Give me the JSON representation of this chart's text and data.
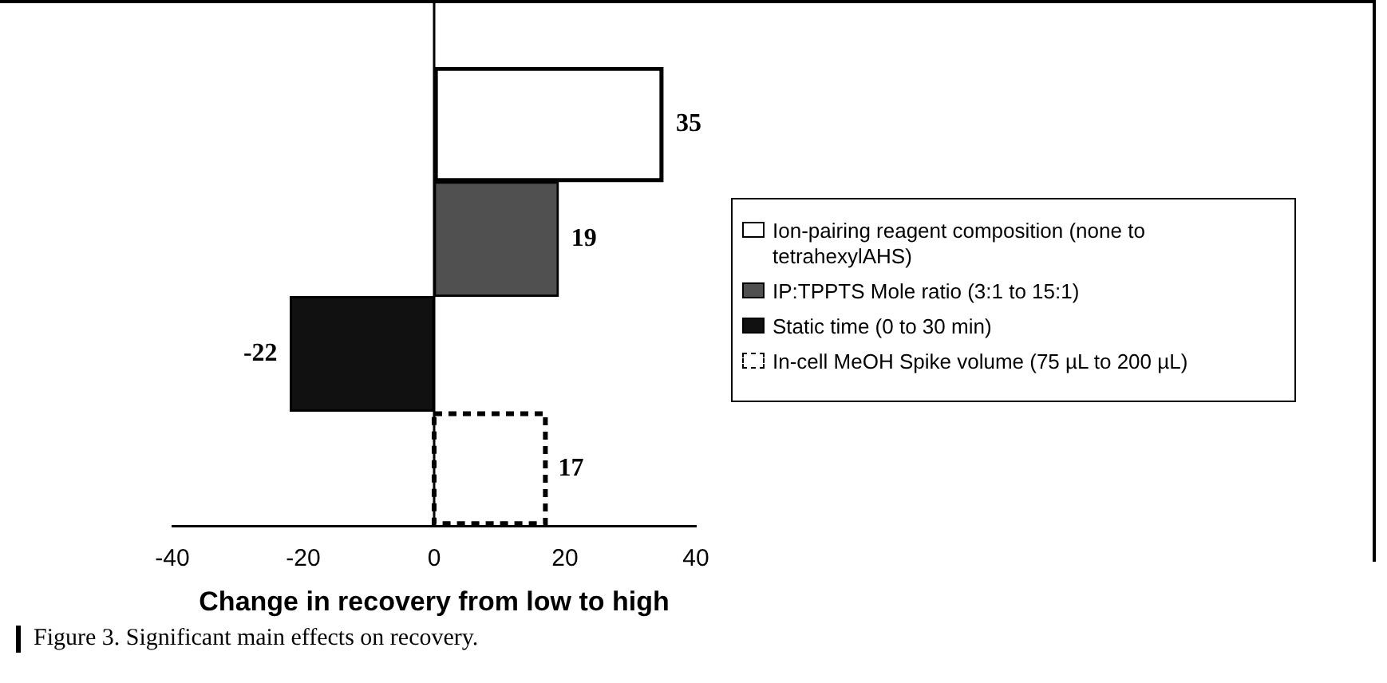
{
  "chart_data": {
    "type": "bar",
    "orientation": "horizontal",
    "xlabel": "Change in recovery from low to high",
    "categories": [
      null,
      null,
      null,
      null
    ],
    "series": [
      {
        "name": "Ion-pairing reagent composition (none to tetrahexylAHS)",
        "color": "#000000",
        "line_style": "solid",
        "values": [
          35,
          null,
          null,
          null
        ]
      },
      {
        "name": "IP:TPPTS Mole ratio (3:1 to 15:1)",
        "color": "#505050",
        "values": [
          null,
          19,
          null,
          null
        ]
      },
      {
        "name": "Static time (0 to 30 min)",
        "color": "#111111",
        "values": [
          null,
          null,
          -22,
          null
        ]
      },
      {
        "name": "In-cell MeOH Spike volume (75 µL to 200 µL)",
        "color": "#000000",
        "line_style": "dashed",
        "values": [
          null,
          null,
          null,
          17
        ]
      }
    ],
    "ref_lines": [
      {
        "axis": "x",
        "value": 0
      }
    ],
    "xlim": [
      -40,
      40
    ],
    "xticks": [
      -40,
      -20,
      0,
      20,
      40
    ],
    "grid": false,
    "legend": "right",
    "tick_labels": "x",
    "data_labels": true,
    "annotations": [
      "Figure 3. Significant main effects on recovery."
    ]
  }
}
